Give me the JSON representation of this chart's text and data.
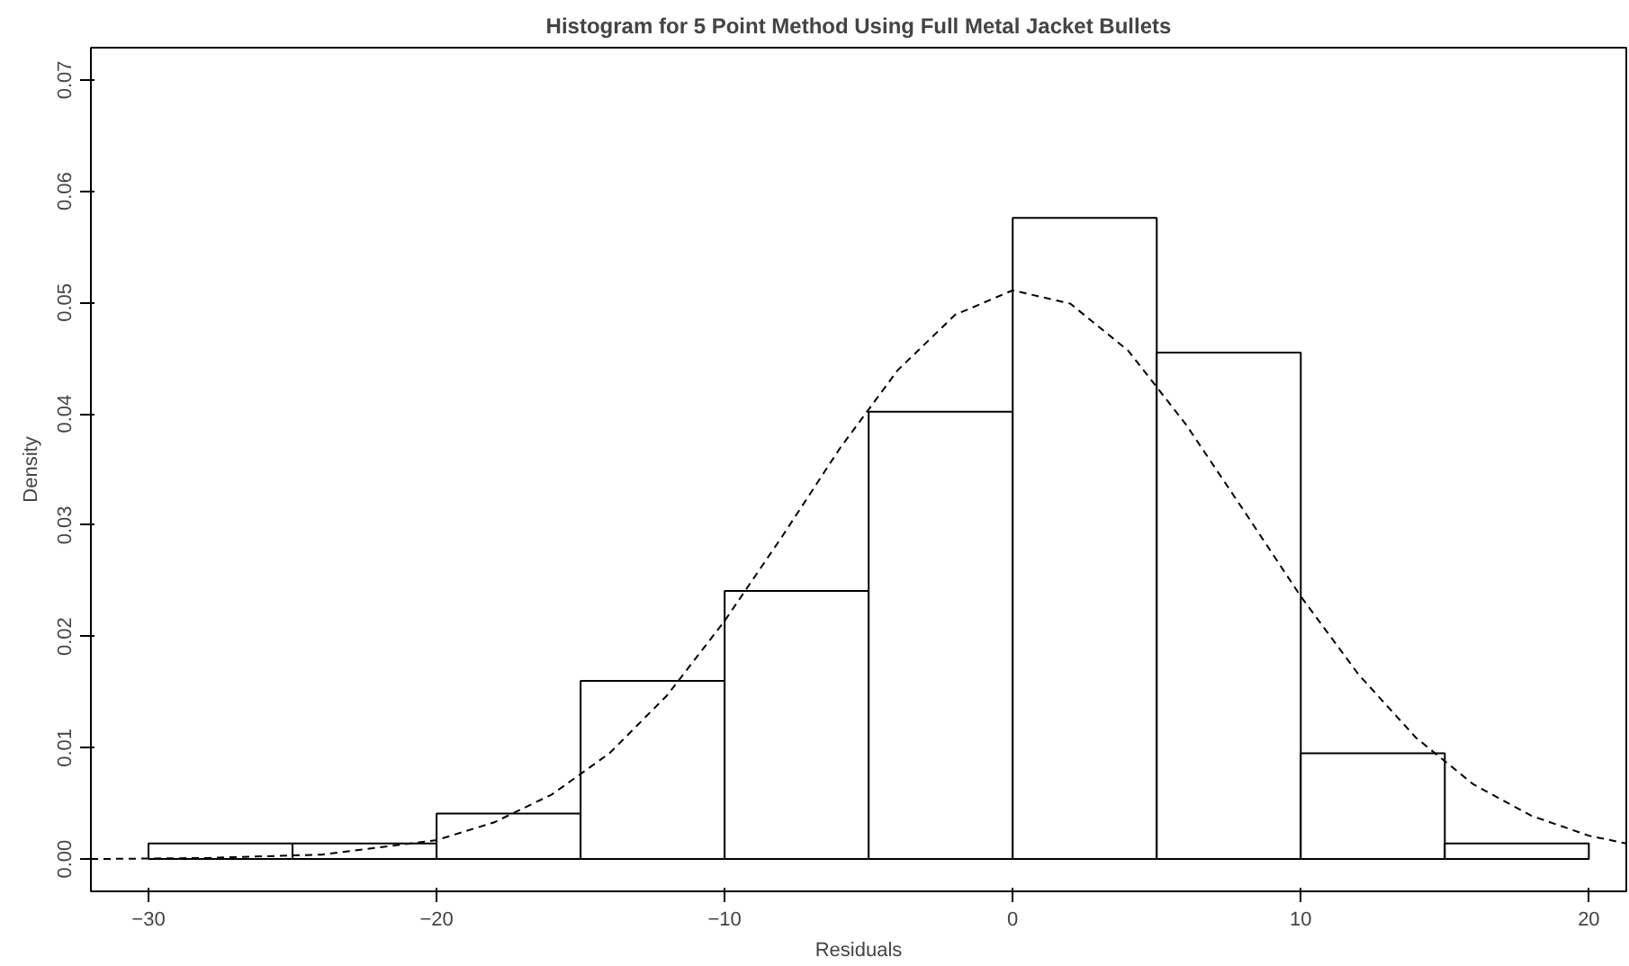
{
  "chart_data": {
    "type": "histogram",
    "title": "Histogram for 5 Point Method Using Full Metal Jacket Bullets",
    "xlabel": "Residuals",
    "ylabel": "Density",
    "xlim": [
      -32,
      21.3
    ],
    "ylim": [
      -0.0029,
      0.0729
    ],
    "xticks": [
      -30,
      -20,
      -10,
      0,
      10,
      20
    ],
    "yticks": [
      {
        "value": 0,
        "label": "0.00"
      },
      {
        "value": 0.01,
        "label": "0.01"
      },
      {
        "value": 0.02,
        "label": "0.02"
      },
      {
        "value": 0.03,
        "label": "0.03"
      },
      {
        "value": 0.04,
        "label": "0.04"
      },
      {
        "value": 0.05,
        "label": "0.05"
      },
      {
        "value": 0.06,
        "label": "0.06"
      },
      {
        "value": 0.07,
        "label": "0.07"
      }
    ],
    "grid": false,
    "series": [
      {
        "color": "#ffffff",
        "bins": [
          -30,
          -25,
          -20,
          -15,
          -10,
          -5,
          0,
          5,
          10,
          15,
          20
        ],
        "values": [
          0.0014,
          0.0014,
          0.0041,
          0.016,
          0.0241,
          0.0402,
          0.0576,
          0.0455,
          0.0095,
          0.0014
        ]
      },
      {
        "type": "line",
        "color": "#000000",
        "line_style": "dashed",
        "x": [
          -32,
          -28,
          -24,
          -20,
          -18,
          -16,
          -14,
          -12,
          -10,
          -8,
          -6,
          -4,
          -2,
          0,
          2,
          4,
          6,
          8,
          10,
          12,
          14,
          16,
          18,
          20,
          21.3
        ],
        "values": [
          0.0,
          0.0001,
          0.0004,
          0.0017,
          0.0033,
          0.0058,
          0.0095,
          0.0147,
          0.0214,
          0.029,
          0.0369,
          0.0439,
          0.0489,
          0.0511,
          0.0499,
          0.0457,
          0.0391,
          0.0314,
          0.0236,
          0.0166,
          0.0109,
          0.0067,
          0.0039,
          0.0021,
          0.0014
        ]
      }
    ]
  }
}
